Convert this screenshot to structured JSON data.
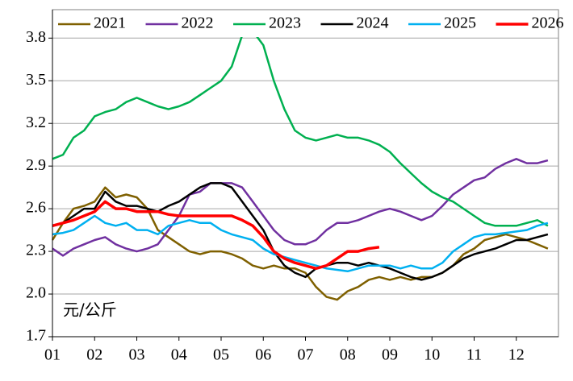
{
  "chart_data": {
    "type": "line",
    "annotation": "元/公斤",
    "x": [
      1,
      1.25,
      1.5,
      1.75,
      2,
      2.25,
      2.5,
      2.75,
      3,
      3.25,
      3.5,
      3.75,
      4,
      4.25,
      4.5,
      4.75,
      5,
      5.25,
      5.5,
      5.75,
      6,
      6.25,
      6.5,
      6.75,
      7,
      7.25,
      7.5,
      7.75,
      8,
      8.25,
      8.5,
      8.75,
      9,
      9.25,
      9.5,
      9.75,
      10,
      10.25,
      10.5,
      10.75,
      11,
      11.25,
      11.5,
      11.75,
      12,
      12.25,
      12.5,
      12.75
    ],
    "xlim": [
      1,
      13
    ],
    "xticks": [
      {
        "value": 1,
        "label": "01"
      },
      {
        "value": 2,
        "label": "02"
      },
      {
        "value": 3,
        "label": "03"
      },
      {
        "value": 4,
        "label": "04"
      },
      {
        "value": 5,
        "label": "05"
      },
      {
        "value": 6,
        "label": "06"
      },
      {
        "value": 7,
        "label": "07"
      },
      {
        "value": 8,
        "label": "08"
      },
      {
        "value": 9,
        "label": "09"
      },
      {
        "value": 10,
        "label": "10"
      },
      {
        "value": 11,
        "label": "11"
      },
      {
        "value": 12,
        "label": "12"
      }
    ],
    "ylim": [
      1.7,
      4.0
    ],
    "yticks": [
      1.7,
      {
        "value": 2,
        "label": "2.0"
      },
      2.3,
      2.6,
      2.9,
      3.2,
      3.5,
      3.8
    ],
    "grid": true,
    "legend": "top",
    "series": [
      {
        "name": "2021",
        "color": "#7f6000",
        "values": [
          2.38,
          2.5,
          2.6,
          2.62,
          2.65,
          2.75,
          2.68,
          2.7,
          2.68,
          2.6,
          2.45,
          2.4,
          2.35,
          2.3,
          2.28,
          2.3,
          2.3,
          2.28,
          2.25,
          2.2,
          2.18,
          2.2,
          2.18,
          2.18,
          2.15,
          2.05,
          1.98,
          1.96,
          2.02,
          2.05,
          2.1,
          2.12,
          2.1,
          2.12,
          2.1,
          2.12,
          2.12,
          2.15,
          2.2,
          2.28,
          2.32,
          2.38,
          2.4,
          2.42,
          2.4,
          2.38,
          2.35,
          2.32
        ]
      },
      {
        "name": "2022",
        "color": "#7030a0",
        "values": [
          2.32,
          2.27,
          2.32,
          2.35,
          2.38,
          2.4,
          2.35,
          2.32,
          2.3,
          2.32,
          2.35,
          2.45,
          2.55,
          2.7,
          2.72,
          2.78,
          2.78,
          2.78,
          2.75,
          2.65,
          2.55,
          2.45,
          2.38,
          2.35,
          2.35,
          2.38,
          2.45,
          2.5,
          2.5,
          2.52,
          2.55,
          2.58,
          2.6,
          2.58,
          2.55,
          2.52,
          2.55,
          2.62,
          2.7,
          2.75,
          2.8,
          2.82,
          2.88,
          2.92,
          2.95,
          2.92,
          2.92,
          2.94
        ]
      },
      {
        "name": "2023",
        "color": "#00b050",
        "values": [
          2.95,
          2.98,
          3.1,
          3.15,
          3.25,
          3.28,
          3.3,
          3.35,
          3.38,
          3.35,
          3.32,
          3.3,
          3.32,
          3.35,
          3.4,
          3.45,
          3.5,
          3.6,
          3.82,
          3.85,
          3.75,
          3.5,
          3.3,
          3.15,
          3.1,
          3.08,
          3.1,
          3.12,
          3.1,
          3.1,
          3.08,
          3.05,
          3.0,
          2.92,
          2.85,
          2.78,
          2.72,
          2.68,
          2.65,
          2.6,
          2.55,
          2.5,
          2.48,
          2.48,
          2.48,
          2.5,
          2.52,
          2.48
        ]
      },
      {
        "name": "2024",
        "color": "#000000",
        "values": [
          2.48,
          2.5,
          2.55,
          2.6,
          2.6,
          2.72,
          2.65,
          2.62,
          2.62,
          2.6,
          2.58,
          2.62,
          2.65,
          2.7,
          2.75,
          2.78,
          2.78,
          2.75,
          2.65,
          2.55,
          2.45,
          2.3,
          2.2,
          2.15,
          2.12,
          2.18,
          2.2,
          2.22,
          2.22,
          2.2,
          2.22,
          2.2,
          2.18,
          2.15,
          2.12,
          2.1,
          2.12,
          2.15,
          2.2,
          2.25,
          2.28,
          2.3,
          2.32,
          2.35,
          2.38,
          2.38,
          2.4,
          2.42
        ]
      },
      {
        "name": "2025",
        "color": "#00b0f0",
        "values": [
          2.42,
          2.43,
          2.45,
          2.5,
          2.55,
          2.5,
          2.48,
          2.5,
          2.45,
          2.45,
          2.42,
          2.48,
          2.5,
          2.52,
          2.5,
          2.5,
          2.45,
          2.42,
          2.4,
          2.38,
          2.32,
          2.28,
          2.26,
          2.24,
          2.22,
          2.2,
          2.18,
          2.17,
          2.16,
          2.18,
          2.2,
          2.2,
          2.2,
          2.18,
          2.2,
          2.18,
          2.18,
          2.22,
          2.3,
          2.35,
          2.4,
          2.42,
          2.42,
          2.43,
          2.44,
          2.45,
          2.48,
          2.5
        ]
      },
      {
        "name": "2026",
        "color": "#ff0000",
        "values": [
          2.48,
          2.5,
          2.52,
          2.55,
          2.58,
          2.65,
          2.6,
          2.6,
          2.58,
          2.58,
          2.58,
          2.56,
          2.55,
          2.55,
          2.55,
          2.55,
          2.55,
          2.55,
          2.52,
          2.48,
          2.4,
          2.3,
          2.25,
          2.22,
          2.2,
          2.18,
          2.2,
          2.25,
          2.3,
          2.3,
          2.32,
          2.33,
          null,
          null,
          null,
          null,
          null,
          null,
          null,
          null,
          null,
          null,
          null,
          null,
          null,
          null,
          null,
          null
        ]
      }
    ]
  }
}
